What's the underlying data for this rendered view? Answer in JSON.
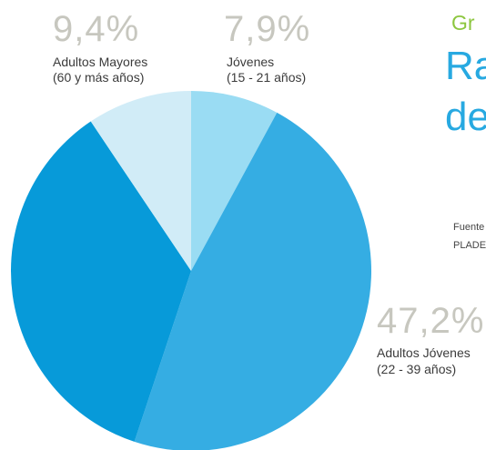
{
  "header": {
    "line1": "Gr",
    "title_line1": "Ra",
    "title_line2": "de",
    "source_line1": "Fuente",
    "source_line2": "PLADE"
  },
  "colors": {
    "slice_jovenes": "#9adcf3",
    "slice_adultos_jovenes": "#35ade3",
    "slice_adultos": "#079ad9",
    "slice_mayores": "#d1ecf7",
    "percent_text": "#c7c7bf",
    "accent_green": "#8cc63f",
    "title_blue": "#27a9e1"
  },
  "chart_data": {
    "type": "pie",
    "slices": [
      {
        "key": "jovenes",
        "value": 7.9,
        "percent_label": "7,9%",
        "label_line1": "Jóvenes",
        "label_line2": "(15 - 21 años)"
      },
      {
        "key": "adultos_jovenes",
        "value": 47.2,
        "percent_label": "47,2%",
        "label_line1": "Adultos Jóvenes",
        "label_line2": "(22 - 39 años)"
      },
      {
        "key": "adultos",
        "value": 35.5,
        "percent_label": "",
        "label_line1": "",
        "label_line2": ""
      },
      {
        "key": "mayores",
        "value": 9.4,
        "percent_label": "9,4%",
        "label_line1": "Adultos Mayores",
        "label_line2": "(60 y más años)"
      }
    ]
  }
}
